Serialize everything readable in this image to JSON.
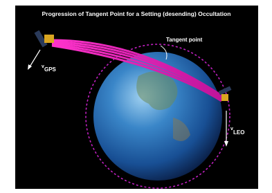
{
  "title": "Progression of Tangent Point for a Setting (desending) Occultation",
  "labels": {
    "tangent_point": "Tangent point",
    "gps_velocity": {
      "symbol": "v",
      "subscript": "GPS"
    },
    "leo_velocity": {
      "symbol": "v",
      "subscript": "LEO"
    }
  }
}
